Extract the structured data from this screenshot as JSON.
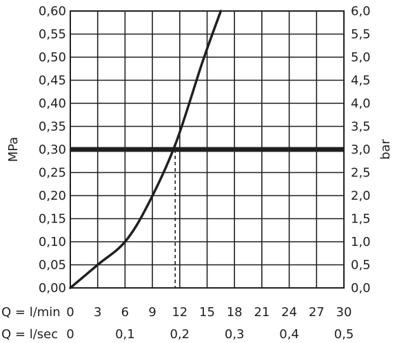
{
  "chart_data": {
    "type": "line",
    "left_axis": {
      "label": "MPa",
      "ylim": [
        0,
        0.6
      ],
      "ticks": [
        "0,00",
        "0,05",
        "0,10",
        "0,15",
        "0,20",
        "0,25",
        "0,30",
        "0,35",
        "0,40",
        "0,45",
        "0,50",
        "0,55",
        "0,60"
      ]
    },
    "right_axis": {
      "label": "bar",
      "ylim": [
        0,
        6
      ],
      "ticks": [
        "0,0",
        "0,5",
        "1,0",
        "1,5",
        "2,0",
        "2,5",
        "3,0",
        "3,5",
        "4,0",
        "4,5",
        "5,0",
        "5,5",
        "6,0"
      ]
    },
    "x_axis_primary": {
      "label": "Q = l/min",
      "xlim": [
        0,
        30
      ],
      "ticks": [
        "0",
        "3",
        "6",
        "9",
        "12",
        "15",
        "18",
        "21",
        "24",
        "27",
        "30"
      ]
    },
    "x_axis_secondary": {
      "label": "Q = l/sec",
      "ticks": [
        "0",
        "0,1",
        "0,2",
        "0,3",
        "0,4",
        "0,5"
      ]
    },
    "grid": true,
    "series": [
      {
        "x": [
          0,
          3,
          6,
          8.5,
          11.5,
          14.5,
          16.5
        ],
        "y": [
          0.0,
          0.05,
          0.1,
          0.18,
          0.31,
          0.49,
          0.6
        ]
      }
    ],
    "reference_line": {
      "y": 0.3
    },
    "marker": {
      "x": 11.5,
      "y": 0.3
    }
  }
}
